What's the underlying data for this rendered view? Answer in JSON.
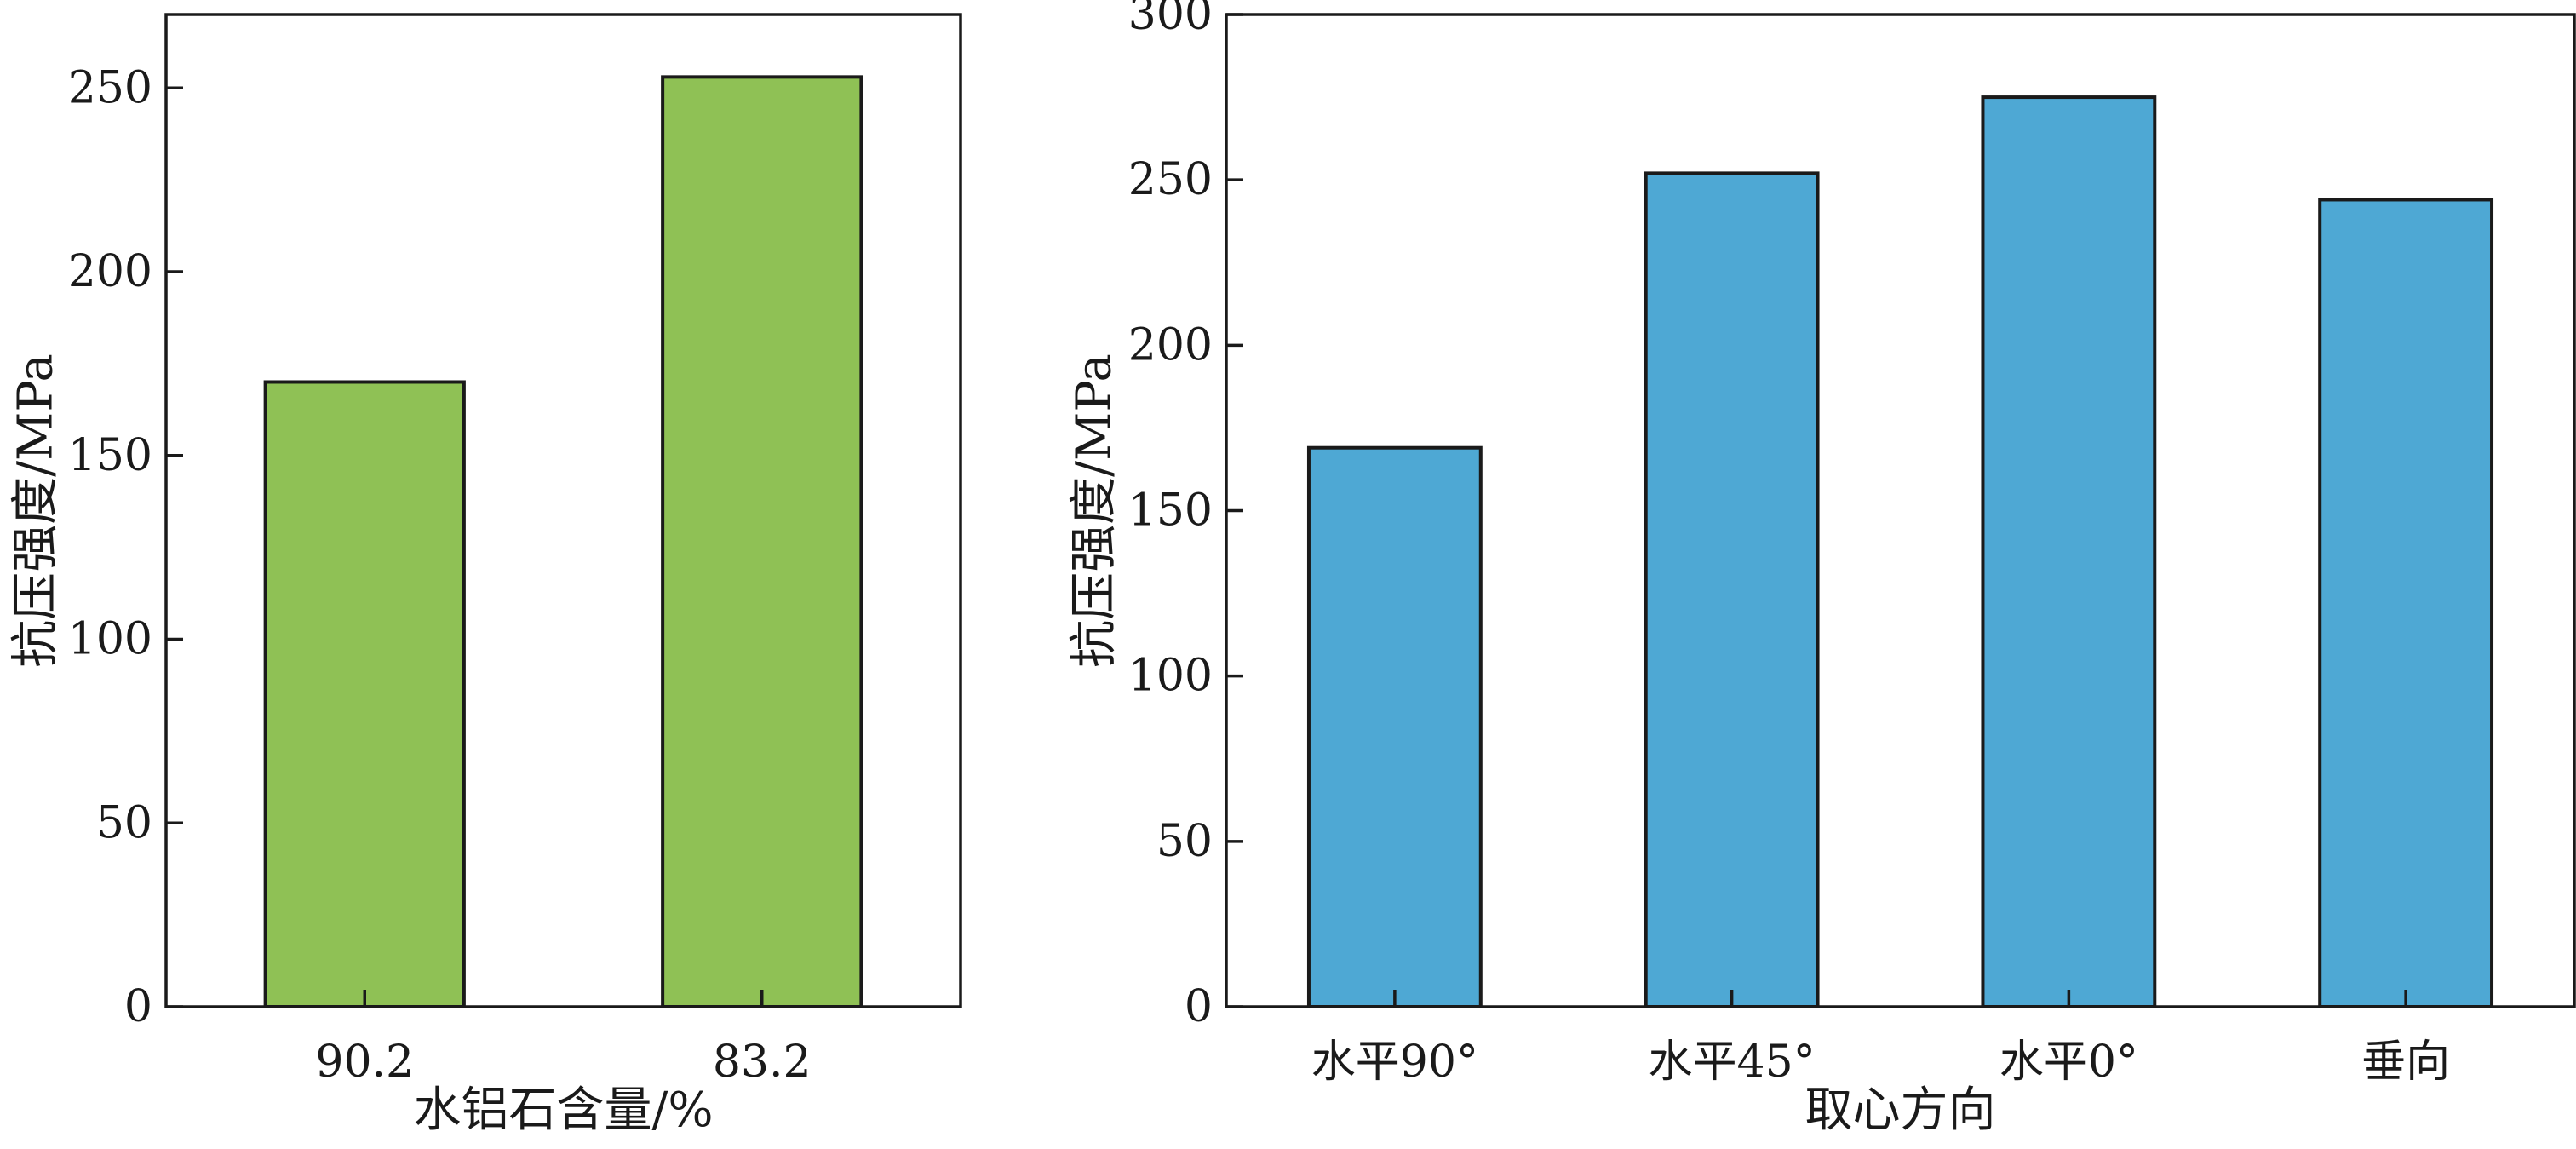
{
  "chart_data": [
    {
      "type": "bar",
      "categories": [
        "90.2",
        "83.2"
      ],
      "values": [
        170,
        253
      ],
      "xlabel": "水铝石含量/%",
      "ylabel": "抗压强度/MPa",
      "ylim": [
        0,
        270
      ],
      "yticks": [
        0,
        50,
        100,
        150,
        200,
        250
      ],
      "bar_color": "#8fc155",
      "grid": false
    },
    {
      "type": "bar",
      "categories": [
        "水平90°",
        "水平45°",
        "水平0°",
        "垂向"
      ],
      "values": [
        169,
        252,
        275,
        244
      ],
      "xlabel": "取心方向",
      "ylabel": "抗压强度/MPa",
      "ylim": [
        0,
        300
      ],
      "yticks": [
        0,
        50,
        100,
        150,
        200,
        250,
        300
      ],
      "bar_color": "#4ea8d4",
      "grid": false
    }
  ]
}
